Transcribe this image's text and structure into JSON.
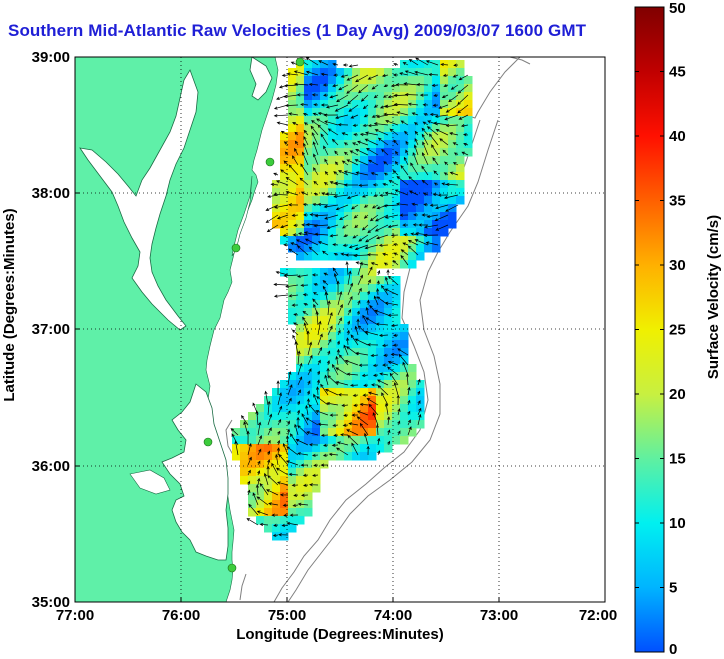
{
  "title": "Southern Mid-Atlantic Raw Velocities (1 Day Avg) 2009/03/07 1600 GMT",
  "map": {
    "xlabel": "Longitude (Degrees:Minutes)",
    "ylabel": "Latitude (Degrees:Minutes)",
    "x_ticks": [
      "77:00",
      "76:00",
      "75:00",
      "74:00",
      "73:00",
      "72:00"
    ],
    "y_ticks": [
      "39:00",
      "38:00",
      "37:00",
      "36:00",
      "35:00"
    ],
    "lon_range": [
      -77,
      -72
    ],
    "lat_range": [
      35,
      39
    ],
    "grid": "dotted",
    "land_color": "#5ff0a8",
    "water_color": "#ffffff",
    "station_color": "#3ccc3c"
  },
  "colorbar": {
    "label": "Surface Velocity (cm/s)",
    "ticks": [
      "0",
      "5",
      "10",
      "15",
      "20",
      "25",
      "30",
      "35",
      "40",
      "45",
      "50"
    ],
    "range": [
      0,
      50
    ],
    "colors": [
      "#0050ff",
      "#00b4ff",
      "#00f0f0",
      "#60f0a0",
      "#c8f040",
      "#f0f000",
      "#ffb000",
      "#ff6000",
      "#ff1000",
      "#c00000",
      "#800000"
    ]
  }
}
